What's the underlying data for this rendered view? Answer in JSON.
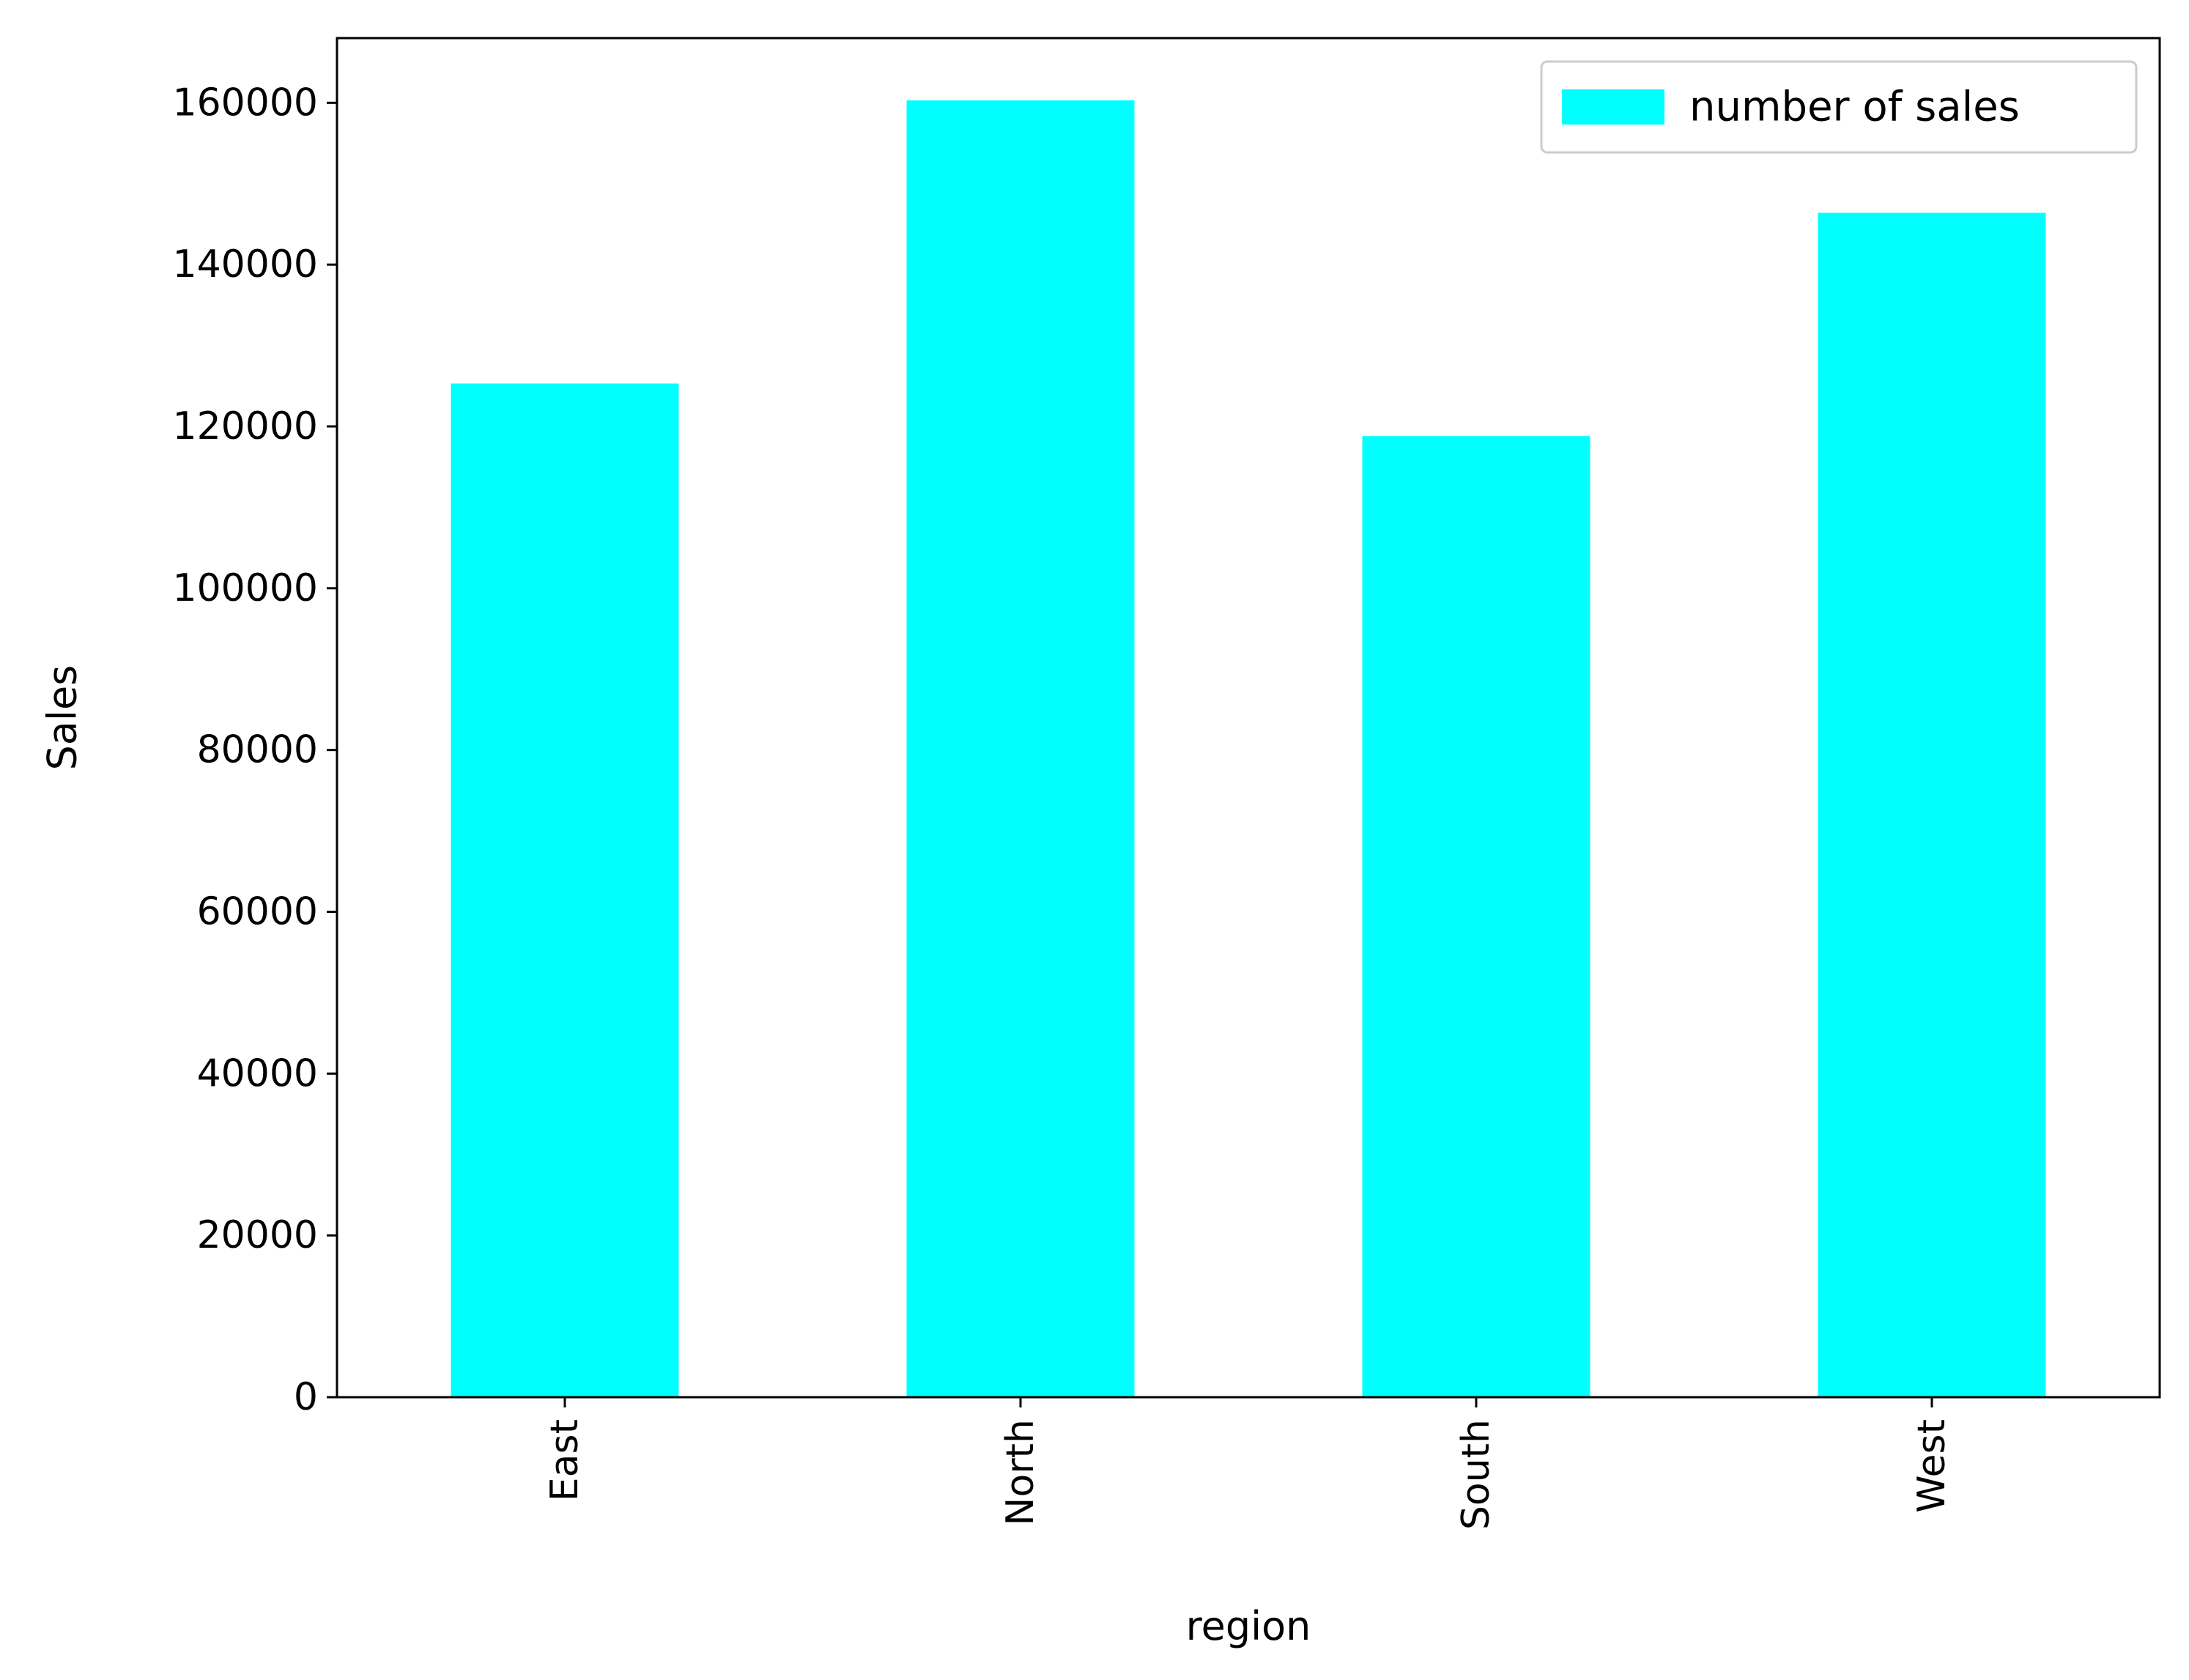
{
  "chart_data": {
    "type": "bar",
    "categories": [
      "East",
      "North",
      "South",
      "West"
    ],
    "series": [
      {
        "name": "number of sales",
        "values": [
          125300,
          160300,
          118800,
          146400
        ]
      }
    ],
    "xlabel": "region",
    "ylabel": "Sales",
    "ylim": [
      0,
      168000
    ],
    "yticks": [
      0,
      20000,
      40000,
      60000,
      80000,
      100000,
      120000,
      140000,
      160000
    ],
    "ytick_labels": [
      "0",
      "20000",
      "40000",
      "60000",
      "80000",
      "100000",
      "120000",
      "140000",
      "160000"
    ],
    "grid": false,
    "legend_position": "top-right",
    "x_tick_rotation": "vertical",
    "bar_color": "#00ffff"
  }
}
